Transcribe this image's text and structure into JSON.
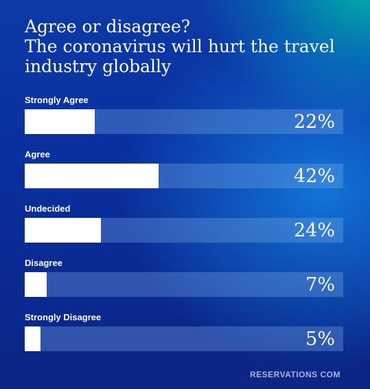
{
  "chart_data": {
    "type": "bar",
    "orientation": "horizontal",
    "title": "Agree or disagree? The coronavirus will hurt the travel industry globally",
    "title_lines": [
      "Agree or disagree?",
      "The coronavirus will hurt the travel",
      "industry globally"
    ],
    "categories": [
      "Strongly Agree",
      "Agree",
      "Undecided",
      "Disagree",
      "Strongly Disagree"
    ],
    "values": [
      22,
      42,
      24,
      7,
      5
    ],
    "value_labels": [
      "22%",
      "42%",
      "24%",
      "7%",
      "5%"
    ],
    "unit": "%",
    "xlim": [
      0,
      100
    ],
    "grid": false,
    "legend": "none",
    "colors": {
      "bar_fill": "#ffffff",
      "track": "#5d8fd6",
      "text": "#ffffff"
    }
  },
  "footer": {
    "brand": "RESERVATIONS COM"
  }
}
